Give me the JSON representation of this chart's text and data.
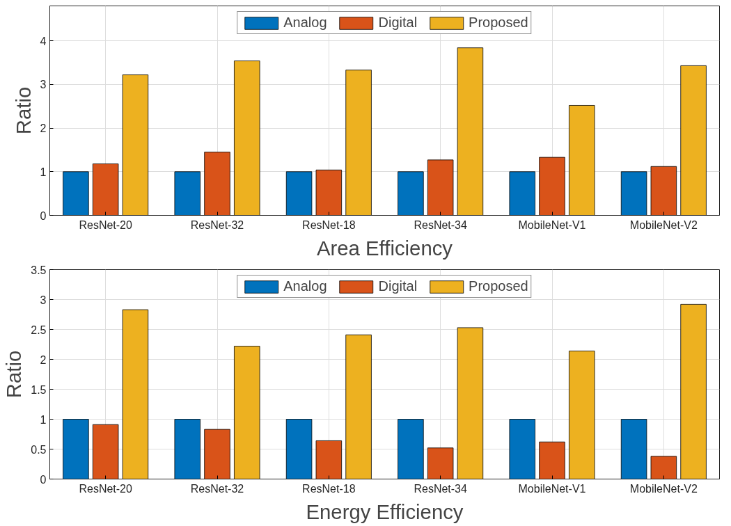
{
  "chart_data": [
    {
      "type": "bar",
      "xlabel": "Area Efficiency",
      "ylabel": "Ratio",
      "categories": [
        "ResNet-20",
        "ResNet-32",
        "ResNet-18",
        "ResNet-34",
        "MobileNet-V1",
        "MobileNet-V2"
      ],
      "series": [
        {
          "name": "Analog",
          "color": "#0072bd",
          "values": [
            1,
            1,
            1,
            1,
            1,
            1
          ]
        },
        {
          "name": "Digital",
          "color": "#d95319",
          "values": [
            1.18,
            1.45,
            1.04,
            1.27,
            1.33,
            1.12
          ]
        },
        {
          "name": "Proposed",
          "color": "#edb120",
          "values": [
            3.22,
            3.54,
            3.33,
            3.84,
            2.52,
            3.43
          ]
        }
      ],
      "ylim": [
        0,
        4.8
      ],
      "yticks": [
        0,
        1,
        2,
        3,
        4
      ],
      "grid": true,
      "legend": "top"
    },
    {
      "type": "bar",
      "xlabel": "Energy Efficiency",
      "ylabel": "Ratio",
      "categories": [
        "ResNet-20",
        "ResNet-32",
        "ResNet-18",
        "ResNet-34",
        "MobileNet-V1",
        "MobileNet-V2"
      ],
      "series": [
        {
          "name": "Analog",
          "color": "#0072bd",
          "values": [
            1,
            1,
            1,
            1,
            1,
            1
          ]
        },
        {
          "name": "Digital",
          "color": "#d95319",
          "values": [
            0.91,
            0.83,
            0.64,
            0.52,
            0.62,
            0.38
          ]
        },
        {
          "name": "Proposed",
          "color": "#edb120",
          "values": [
            2.83,
            2.22,
            2.41,
            2.53,
            2.14,
            2.92
          ]
        }
      ],
      "ylim": [
        0,
        3.5
      ],
      "yticks": [
        0,
        0.5,
        1,
        1.5,
        2,
        2.5,
        3,
        3.5
      ],
      "grid": true,
      "legend": "top"
    }
  ]
}
